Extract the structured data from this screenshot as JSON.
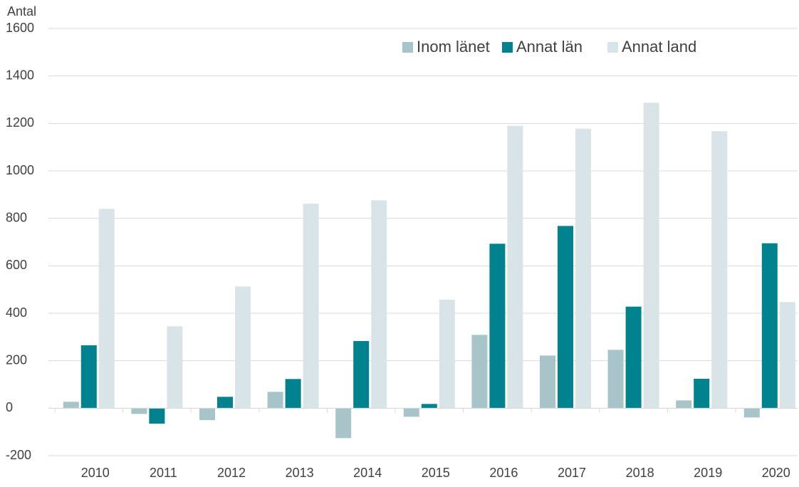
{
  "chart_data": {
    "type": "bar",
    "y_label": "Antal",
    "categories": [
      "2010",
      "2011",
      "2012",
      "2013",
      "2014",
      "2015",
      "2016",
      "2017",
      "2018",
      "2019",
      "2020"
    ],
    "series": [
      {
        "name": "Inom länet",
        "color": "#a7c4c9",
        "values": [
          27,
          -24,
          -50,
          69,
          -126,
          -36,
          309,
          222,
          246,
          33,
          -39
        ]
      },
      {
        "name": "Annat län",
        "color": "#00838f",
        "values": [
          265,
          -65,
          48,
          123,
          283,
          18,
          693,
          768,
          428,
          124,
          695
        ]
      },
      {
        "name": "Annat land",
        "color": "#d9e4e8",
        "values": [
          840,
          345,
          513,
          862,
          876,
          457,
          1190,
          1178,
          1287,
          1167,
          447
        ]
      }
    ],
    "ylim": [
      -200,
      1600
    ],
    "yticks": [
      -200,
      0,
      200,
      400,
      600,
      800,
      1000,
      1200,
      1400,
      1600
    ],
    "grid": true,
    "legend": "top-right"
  }
}
